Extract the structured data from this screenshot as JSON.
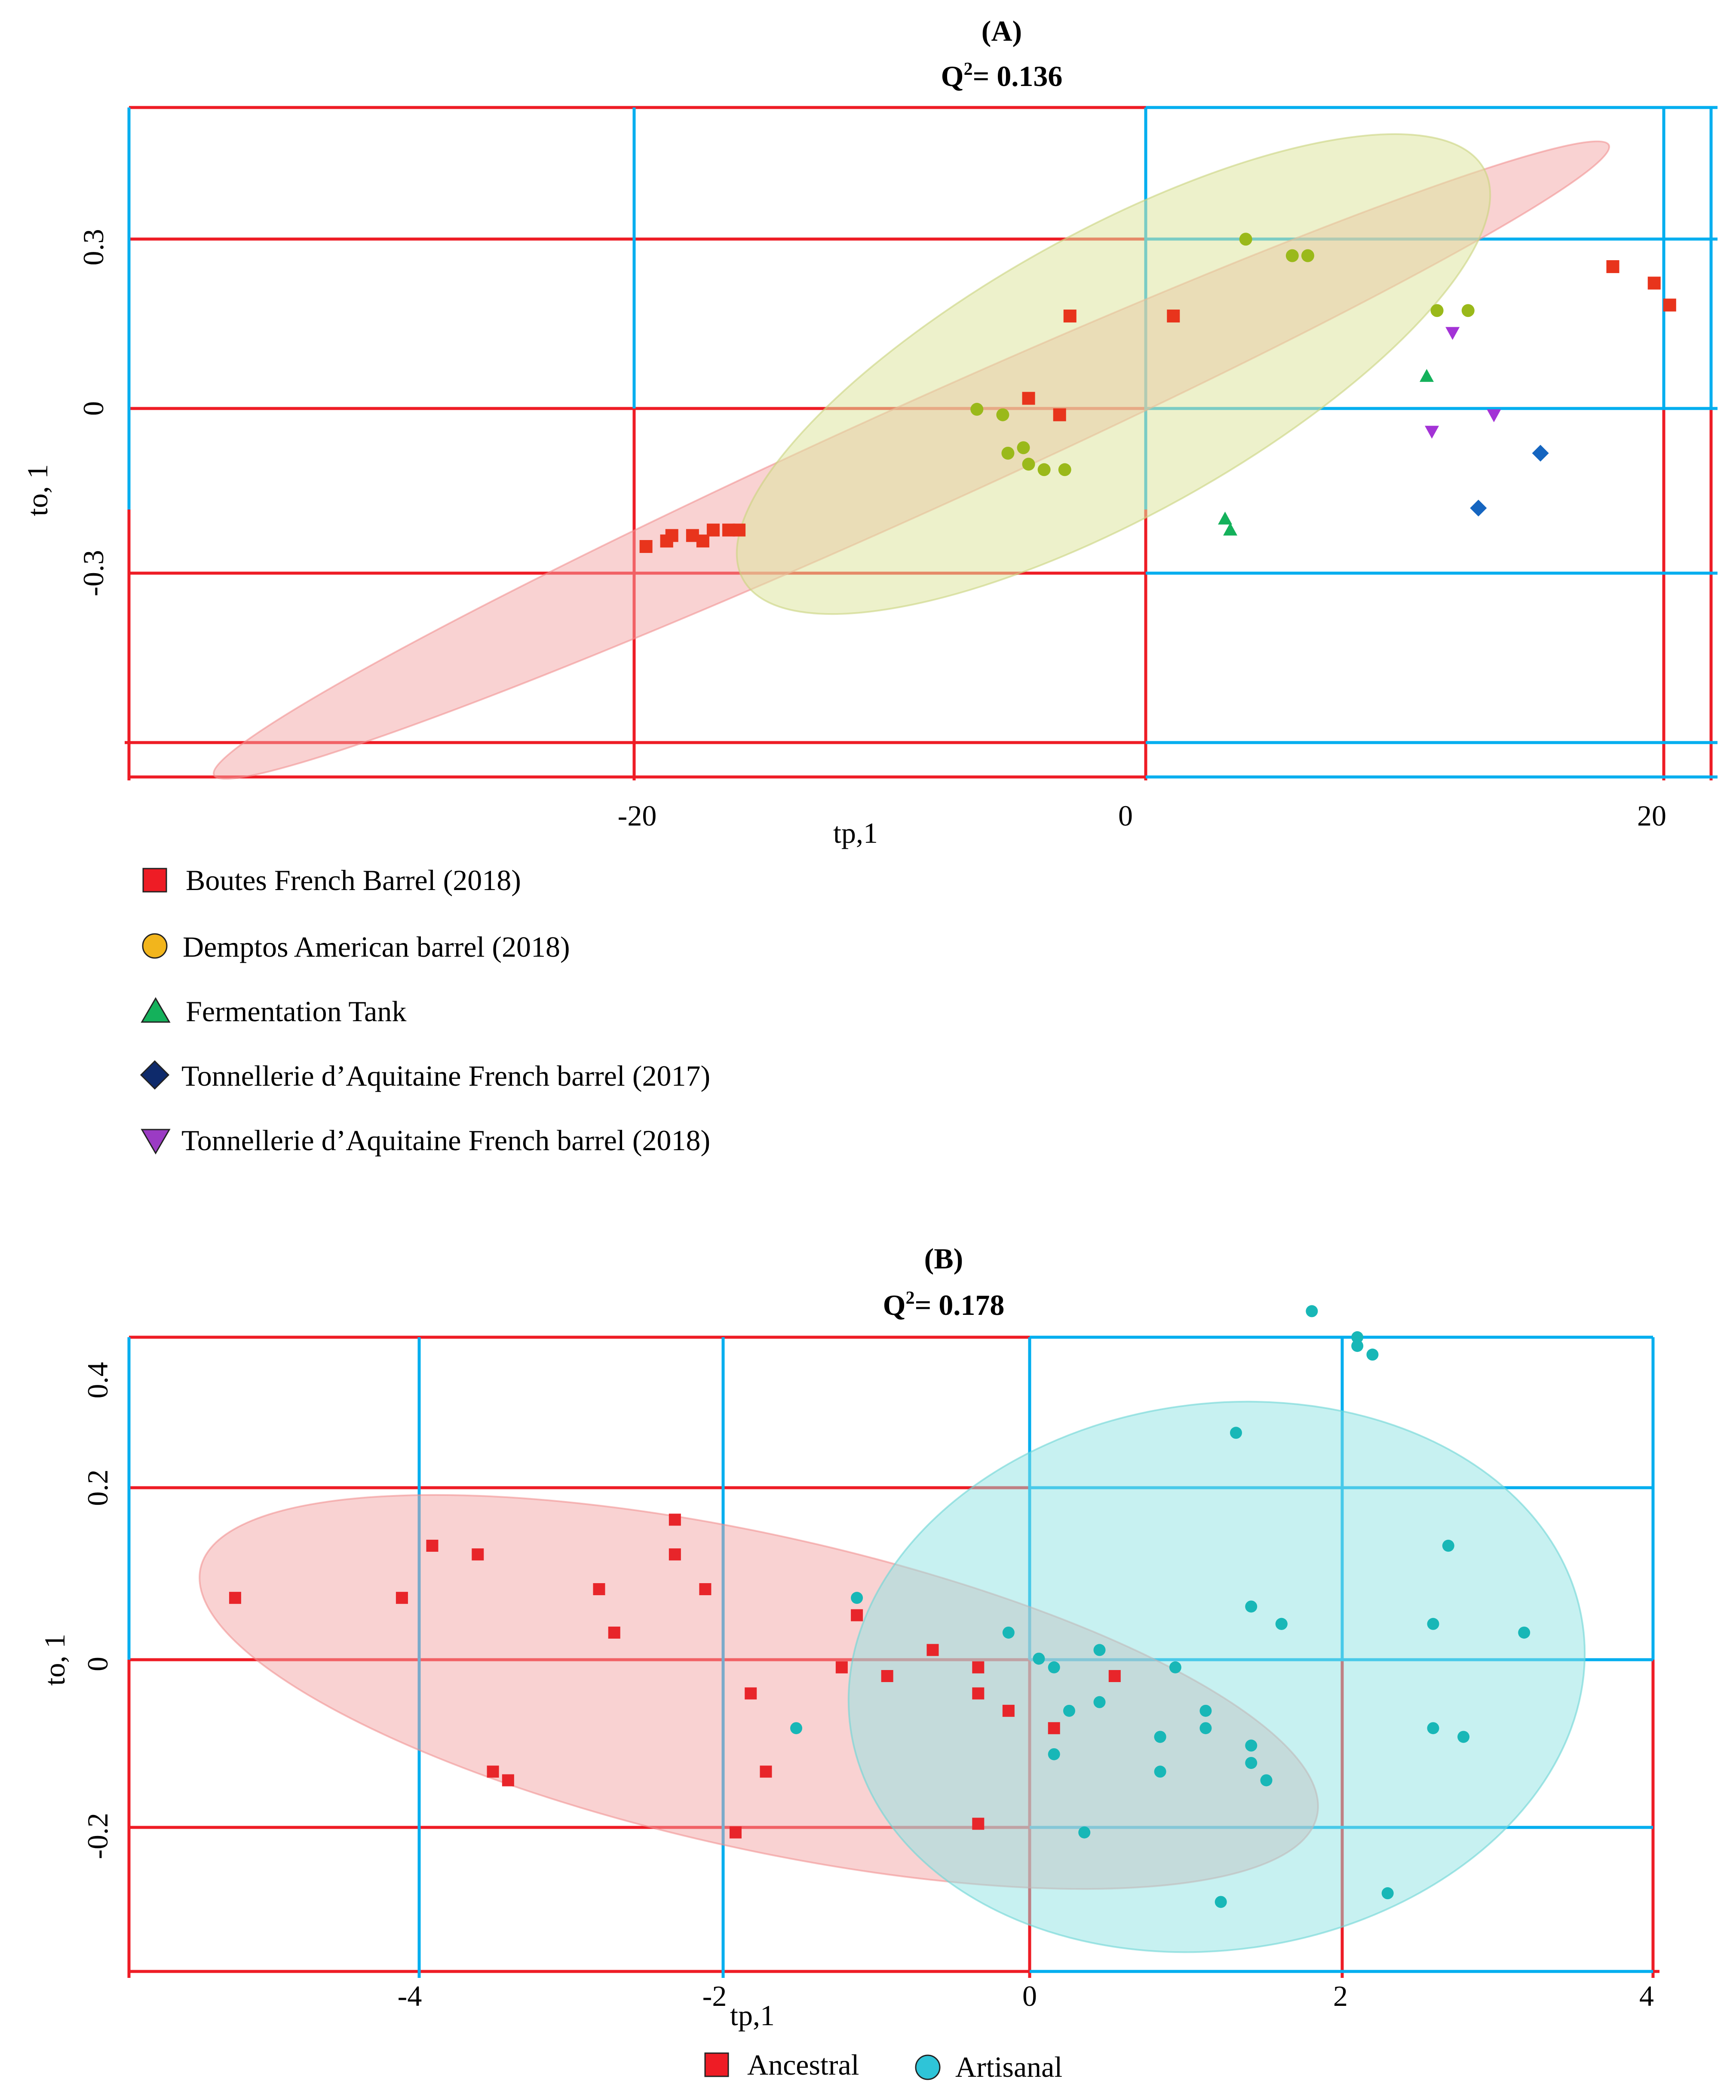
{
  "colors": {
    "red": "#ee1c25",
    "blue": "#00aeef",
    "boutes": "#e8341c",
    "demptos": "#9ab91a",
    "tank": "#14b15b",
    "aq2017": "#1565c0",
    "aq2018": "#a333d6",
    "ancestral": "#e8252a",
    "artisanal": "#18b7b7",
    "overlapMarker": "#a63b3b",
    "overlapDot": "#1a9aa0"
  },
  "chart_data": [
    {
      "type": "scatter",
      "panel": "(A)",
      "title": "(A)",
      "subtitle": {
        "pre": "Q",
        "sup": "2",
        "post": "= 0.136"
      },
      "xlabel": "tp,1",
      "ylabel": "to, 1",
      "xlim": [
        -19.3,
        11.3
      ],
      "ylim": [
        -0.66,
        0.56
      ],
      "xticks": [
        -20,
        0,
        20
      ],
      "xtick_labels": [
        "-20",
        "0",
        "20"
      ],
      "yticks": [
        0.3,
        0,
        -0.3
      ],
      "ytick_labels": [
        "0.3",
        "0",
        "-0.3"
      ],
      "grid": true,
      "legend_position": "below",
      "series": [
        {
          "name": "Boutes French Barrel (2018)",
          "marker": "square",
          "color": "#e8341c",
          "legend_color": "#ee1c25",
          "x": [
            -9.3,
            -8.9,
            -8.9,
            -8.8,
            -8.4,
            -8.0,
            -8.2,
            -7.7,
            -7.5,
            -1.9,
            -1.3,
            -1.1,
            0.9,
            9.4,
            10.2,
            10.5
          ],
          "y": [
            -0.24,
            -0.23,
            -0.23,
            -0.22,
            -0.22,
            -0.21,
            -0.23,
            -0.21,
            -0.21,
            0.03,
            0.0,
            0.18,
            0.18,
            0.27,
            0.24,
            0.2
          ]
        },
        {
          "name": "Demptos American barrel (2018)",
          "marker": "circle",
          "color": "#9ab91a",
          "legend_color": "#f2b51c",
          "x": [
            -2.9,
            -2.4,
            -2.0,
            -2.3,
            -1.9,
            -1.6,
            -1.2,
            2.3,
            3.2,
            3.5,
            6.0,
            6.6
          ],
          "y": [
            0.01,
            0.0,
            -0.06,
            -0.07,
            -0.09,
            -0.1,
            -0.1,
            0.32,
            0.29,
            0.29,
            0.19,
            0.19
          ]
        },
        {
          "name": "Fermentation Tank",
          "marker": "triangle-up",
          "color": "#14b15b",
          "legend_color": "#14b15b",
          "x": [
            1.9,
            2.0,
            5.8
          ],
          "y": [
            -0.19,
            -0.21,
            0.07
          ]
        },
        {
          "name": "Tonnellerie d’Aquitaine French barrel (2017)",
          "marker": "diamond",
          "color": "#1565c0",
          "legend_color": "#0e2a6b",
          "x": [
            6.8,
            8.0
          ],
          "y": [
            -0.17,
            -0.07
          ]
        },
        {
          "name": "Tonnellerie d’Aquitaine French barrel (2018)",
          "marker": "triangle-down",
          "color": "#a333d6",
          "legend_color": "#9b3bc4",
          "x": [
            5.9,
            6.3,
            7.1
          ],
          "y": [
            -0.03,
            0.15,
            0.0
          ]
        }
      ]
    },
    {
      "type": "scatter",
      "panel": "(B)",
      "title": "(B)",
      "subtitle": {
        "pre": "Q",
        "sup": "2",
        "post": "= 0.178"
      },
      "xlabel": "tp,1",
      "ylabel": "to, 1",
      "xlim": [
        -5.9,
        4.15
      ],
      "ylim": [
        -0.35,
        0.38
      ],
      "xticks": [
        -4,
        -2,
        0,
        2,
        4
      ],
      "xtick_labels": [
        "-4",
        "-2",
        "0",
        "2",
        "4"
      ],
      "yticks": [
        0.4,
        0.2,
        0,
        -0.2
      ],
      "ytick_labels": [
        "0.4",
        "0.2",
        "0",
        "-0.2"
      ],
      "grid": true,
      "legend_position": "below",
      "series": [
        {
          "name": "Ancestral",
          "marker": "square",
          "color": "#e8252a",
          "legend_color": "#ee1c25",
          "x": [
            -5.2,
            -4.1,
            -3.9,
            -3.6,
            -2.8,
            -2.7,
            -2.3,
            -2.3,
            -2.1,
            -3.5,
            -3.4,
            -1.8,
            -1.7,
            -1.9,
            -1.2,
            -1.1,
            -0.9,
            -0.6,
            -0.3,
            -0.3,
            -0.1,
            0.2,
            0.6,
            -0.3
          ],
          "y": [
            0.08,
            0.08,
            0.14,
            0.13,
            0.09,
            0.04,
            0.17,
            0.13,
            0.09,
            -0.12,
            -0.13,
            -0.03,
            -0.12,
            -0.19,
            0.0,
            0.06,
            -0.01,
            0.02,
            -0.03,
            0.0,
            -0.05,
            -0.07,
            -0.01,
            -0.18
          ]
        },
        {
          "name": "Artisanal",
          "marker": "circle",
          "color": "#18b7b7",
          "legend_color": "#2ec4d8",
          "x": [
            1.9,
            2.2,
            2.2,
            2.3,
            1.4,
            2.8,
            1.5,
            1.7,
            1.7,
            2.7,
            3.3,
            -1.5,
            -1.1,
            -0.1,
            0.1,
            0.2,
            0.3,
            0.5,
            0.5,
            0.2,
            0.9,
            0.9,
            0.9,
            1.0,
            1.2,
            1.2,
            1.5,
            1.5,
            1.6,
            2.7,
            2.9,
            0.4,
            1.3,
            2.4
          ],
          "y": [
            0.41,
            0.38,
            0.37,
            0.36,
            0.27,
            0.14,
            0.07,
            0.05,
            0.05,
            0.05,
            0.04,
            -0.07,
            0.08,
            0.04,
            0.01,
            0.0,
            -0.05,
            0.02,
            -0.04,
            -0.1,
            -0.08,
            -0.08,
            -0.12,
            0.0,
            -0.05,
            -0.07,
            -0.09,
            -0.11,
            -0.13,
            -0.07,
            -0.08,
            -0.19,
            -0.27,
            -0.26
          ]
        }
      ]
    }
  ]
}
